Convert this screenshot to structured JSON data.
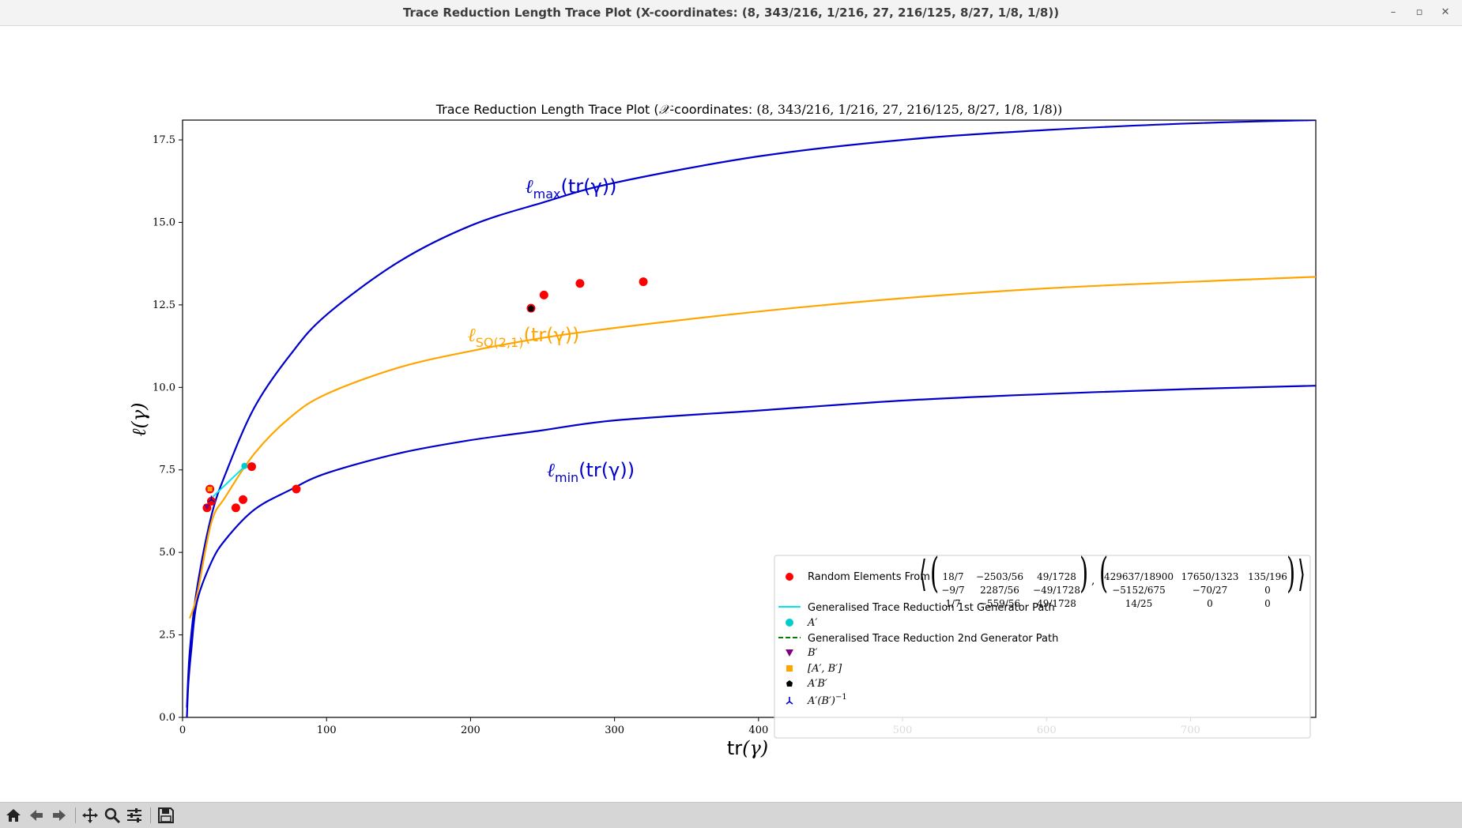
{
  "window": {
    "title": "Trace Reduction Length Trace Plot (X-coordinates: (8, 343/216, 1/216, 27, 216/125, 8/27, 1/8, 1/8))",
    "minimize_glyph": "–",
    "maximize_glyph": "▫",
    "close_glyph": "✕"
  },
  "toolbar": {
    "buttons": [
      "home-icon",
      "back-arrow-icon",
      "forward-arrow-icon",
      "pan-icon",
      "zoom-icon",
      "configure-subplots-icon",
      "save-icon"
    ]
  },
  "chart_data": {
    "type": "scatter",
    "title_prefix": "Trace Reduction Length Trace Plot (",
    "title_symbol": "𝒳",
    "title_mid": "-coordinates: ",
    "title_coords": "(8, 343/216, 1/216, 27, 216/125, 8/27, 1/8, 1/8))",
    "xlabel_text": "tr",
    "xlabel_arg": "(γ)",
    "ylabel_text": "ℓ(γ)",
    "xlim": [
      0,
      787
    ],
    "ylim": [
      0,
      18.1
    ],
    "x_ticks": [
      0,
      100,
      200,
      300,
      400,
      500,
      600,
      700
    ],
    "x_tick_labels": [
      "0",
      "100",
      "200",
      "300",
      "400",
      "500",
      "600",
      "700"
    ],
    "y_ticks": [
      0,
      2.5,
      5,
      7.5,
      10,
      12.5,
      15,
      17.5
    ],
    "y_tick_labels": [
      "0.0",
      "2.5",
      "5.0",
      "7.5",
      "10.0",
      "12.5",
      "15.0",
      "17.5"
    ],
    "curves": [
      {
        "key": "lmax",
        "color": "#0000cc",
        "samples": [
          [
            3,
            0.3
          ],
          [
            5,
            2.0
          ],
          [
            10,
            3.9
          ],
          [
            20,
            6.1
          ],
          [
            30,
            7.4
          ],
          [
            50,
            9.4
          ],
          [
            75,
            11.0
          ],
          [
            100,
            12.2
          ],
          [
            150,
            13.8
          ],
          [
            200,
            14.9
          ],
          [
            250,
            15.6
          ],
          [
            300,
            16.2
          ],
          [
            400,
            17.0
          ],
          [
            500,
            17.5
          ],
          [
            600,
            17.8
          ],
          [
            700,
            18.0
          ],
          [
            787,
            18.1
          ]
        ]
      },
      {
        "key": "lso",
        "color": "#ffa500",
        "samples": [
          [
            5,
            3.0
          ],
          [
            10,
            3.7
          ],
          [
            20,
            5.9
          ],
          [
            30,
            6.7
          ],
          [
            50,
            8.0
          ],
          [
            75,
            9.1
          ],
          [
            100,
            9.8
          ],
          [
            150,
            10.6
          ],
          [
            200,
            11.1
          ],
          [
            250,
            11.5
          ],
          [
            300,
            11.8
          ],
          [
            400,
            12.3
          ],
          [
            500,
            12.7
          ],
          [
            600,
            13.0
          ],
          [
            700,
            13.2
          ],
          [
            787,
            13.35
          ]
        ]
      },
      {
        "key": "lmin",
        "color": "#0000cc",
        "samples": [
          [
            3,
            0.0
          ],
          [
            4,
            1.0
          ],
          [
            6,
            2.0
          ],
          [
            10,
            3.5
          ],
          [
            20,
            4.7
          ],
          [
            30,
            5.4
          ],
          [
            50,
            6.3
          ],
          [
            75,
            6.9
          ],
          [
            100,
            7.4
          ],
          [
            150,
            8.0
          ],
          [
            200,
            8.4
          ],
          [
            250,
            8.7
          ],
          [
            300,
            9.0
          ],
          [
            400,
            9.3
          ],
          [
            500,
            9.6
          ],
          [
            600,
            9.8
          ],
          [
            700,
            9.95
          ],
          [
            787,
            10.05
          ]
        ]
      }
    ],
    "curve_labels": [
      {
        "key": "lmax",
        "base": "ℓ",
        "sub": "max",
        "arg": "(tr(γ))",
        "x": 238,
        "y": 15.9,
        "color": "#0000cc"
      },
      {
        "key": "lso",
        "base": "ℓ",
        "sub": "SO(2,1)",
        "arg": "(tr(γ))",
        "x": 198,
        "y": 11.4,
        "color": "#ffa500"
      },
      {
        "key": "lmin",
        "base": "ℓ",
        "sub": "min",
        "arg": "(tr(γ))",
        "x": 253,
        "y": 7.3,
        "color": "#0000cc"
      }
    ],
    "random_points": {
      "color": "#ff0000",
      "x": [
        17,
        19,
        20,
        37,
        42,
        48,
        79,
        242,
        251,
        276,
        320
      ],
      "y": [
        6.35,
        6.92,
        6.55,
        6.35,
        6.6,
        7.6,
        6.92,
        12.4,
        12.8,
        13.15,
        13.2
      ]
    },
    "path_1st": {
      "color": "#00e5ee",
      "x": [
        19,
        43
      ],
      "y": [
        6.6,
        7.6
      ]
    },
    "path_2nd": {
      "color": "#008000",
      "x": [
        17,
        20
      ],
      "y": [
        6.35,
        6.55
      ]
    },
    "markers": {
      "A_prime": {
        "x": 43,
        "y": 7.62,
        "color": "#00cccc"
      },
      "B_prime": {
        "x": 17,
        "y": 6.38,
        "color": "#800080"
      },
      "commutator": {
        "x": 19,
        "y": 6.92,
        "color": "#ffa500"
      },
      "AB": {
        "x": 242,
        "y": 12.4,
        "color": "#000000"
      },
      "AB_inv": {
        "x": 20,
        "y": 6.6,
        "color": "#0000cc"
      }
    },
    "legend": {
      "placement": "lower-right",
      "random_label": "Random Elements From",
      "matrix1": [
        [
          "18/7",
          "−2503/56",
          "49/1728"
        ],
        [
          "−9/7",
          "2287/56",
          "−49/1728"
        ],
        [
          "1/7",
          "−559/56",
          "49/1728"
        ]
      ],
      "matrix2": [
        [
          "429637/18900",
          "17650/1323",
          "135/196"
        ],
        [
          "−5152/675",
          "−70/27",
          "0"
        ],
        [
          "14/25",
          "0",
          "0"
        ]
      ],
      "matrix_separator": ",",
      "path1_label": "Generalised Trace Reduction 1st Generator Path",
      "a_label": "A′",
      "path2_label": "Generalised Trace Reduction 2nd Generator Path",
      "b_label": "B′",
      "comm_label": "[A′, B′]",
      "ab_label": "A′B′",
      "abinv_label": "A′(B′)",
      "abinv_sup": "−1"
    }
  }
}
